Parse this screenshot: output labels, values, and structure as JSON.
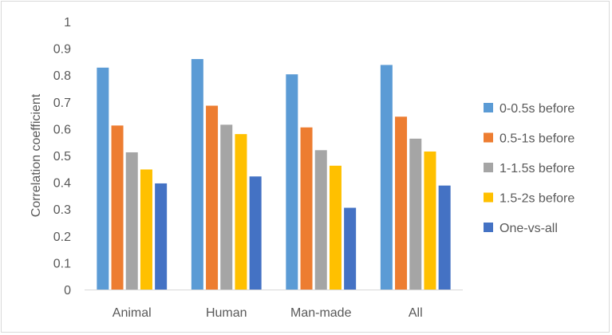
{
  "chart_data": {
    "type": "bar",
    "title": "",
    "xlabel": "",
    "ylabel": "Correlation coefficient",
    "categories": [
      "Animal",
      "Human",
      "Man-made",
      "All"
    ],
    "ylim": [
      0,
      1
    ],
    "yticks": [
      "0",
      "0.1",
      "0.2",
      "0.3",
      "0.4",
      "0.5",
      "0.6",
      "0.7",
      "0.8",
      "0.9",
      "1"
    ],
    "grid": false,
    "legend_position": "right",
    "series": [
      {
        "name": "0-0.5s before",
        "color": "#5b9bd5",
        "values": [
          0.828,
          0.86,
          0.803,
          0.838
        ]
      },
      {
        "name": "0.5-1s before",
        "color": "#ed7d31",
        "values": [
          0.612,
          0.686,
          0.605,
          0.645
        ]
      },
      {
        "name": "1-1.5s before",
        "color": "#a5a5a5",
        "values": [
          0.512,
          0.615,
          0.52,
          0.563
        ]
      },
      {
        "name": "1.5-2s before",
        "color": "#ffc000",
        "values": [
          0.448,
          0.58,
          0.462,
          0.515
        ]
      },
      {
        "name": "One-vs-all",
        "color": "#4472c4",
        "values": [
          0.396,
          0.422,
          0.305,
          0.388
        ]
      }
    ]
  }
}
